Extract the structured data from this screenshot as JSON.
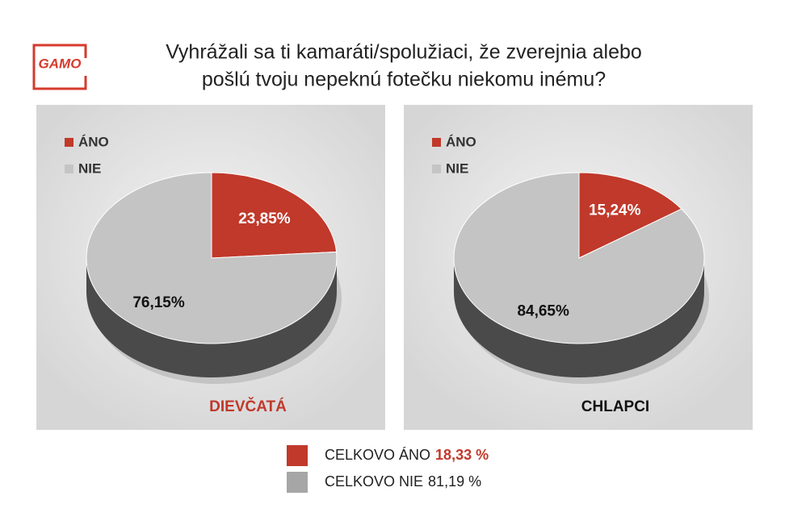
{
  "logo": "GAMO",
  "title": [
    "Vyhrážali sa ti kamaráti/spolužiaci, že zverejnia alebo",
    "pošlú tvoju nepeknú fotečku niekomu inému?"
  ],
  "chart_data": [
    {
      "type": "pie",
      "caption": "DIEVČATÁ",
      "caption_color": "#c0392b",
      "categories": [
        "ÁNO",
        "NIE"
      ],
      "values": [
        23.85,
        76.15
      ],
      "value_labels": [
        "23,85%",
        "76,15%"
      ],
      "colors": [
        "#c0392b",
        "#c4c4c4"
      ],
      "legend": "top-left"
    },
    {
      "type": "pie",
      "caption": "CHLAPCI",
      "caption_color": "#111111",
      "categories": [
        "ÁNO",
        "NIE"
      ],
      "values": [
        15.24,
        84.65
      ],
      "value_labels": [
        "15,24%",
        "84,65%"
      ],
      "colors": [
        "#c0392b",
        "#c4c4c4"
      ],
      "legend": "top-left"
    }
  ],
  "totals": [
    {
      "label": "CELKOVO ÁNO",
      "value": "18,33 %",
      "color": "#c0392b",
      "value_color": "#c0392b"
    },
    {
      "label": "CELKOVO NIE",
      "value": "81,19 %",
      "color": "#a6a6a6",
      "value_color": "#222222"
    }
  ]
}
